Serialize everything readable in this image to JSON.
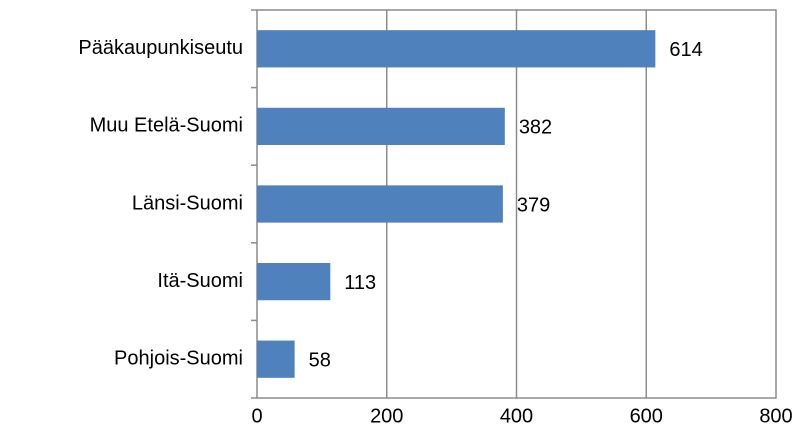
{
  "chart_data": {
    "type": "bar",
    "orientation": "horizontal",
    "categories": [
      "Pääkaupunkiseutu",
      "Muu Etelä-Suomi",
      "Länsi-Suomi",
      "Itä-Suomi",
      "Pohjois-Suomi"
    ],
    "values": [
      614,
      382,
      379,
      113,
      58
    ],
    "color": "#4f81bd",
    "xlim": [
      0,
      800
    ],
    "xticks": [
      0,
      200,
      400,
      600,
      800
    ],
    "grid": true
  }
}
